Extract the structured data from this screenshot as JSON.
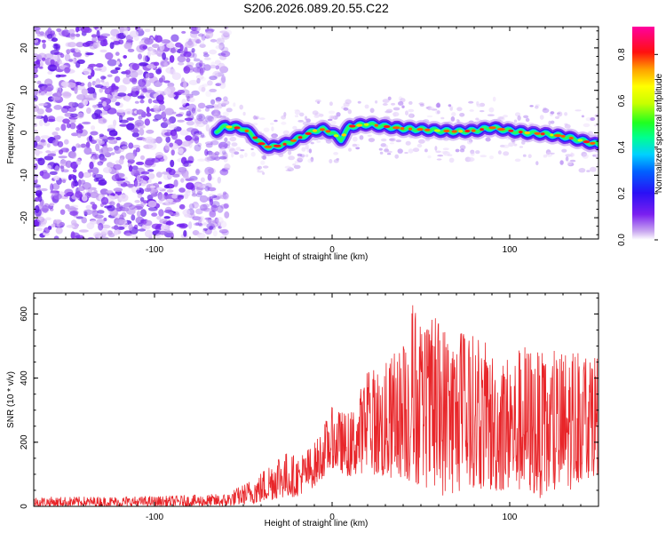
{
  "title": "S206.2026.089.20.55.C22",
  "chart_data": [
    {
      "type": "heatmap",
      "name": "spectrogram",
      "xlabel": "Height of straight line (km)",
      "ylabel": "Frequency (Hz)",
      "xlim": [
        -168,
        150
      ],
      "ylim": [
        -25,
        25
      ],
      "xticks": [
        -100,
        0,
        100
      ],
      "yticks": [
        -20,
        -10,
        0,
        10,
        20
      ],
      "colorbar": {
        "label": "Normalized spectral amplitude",
        "range": [
          0,
          0.92
        ],
        "ticks": [
          0.0,
          0.2,
          0.4,
          0.6,
          0.8
        ],
        "tick_labels": [
          "0.0",
          "0.2",
          "0.4",
          "0.6",
          "0.8"
        ]
      },
      "noise_region_x": [
        -168,
        -65
      ],
      "ridge": {
        "description": "Doppler frequency ridge vs height",
        "x": [
          -65,
          -60,
          -50,
          -45,
          -40,
          -35,
          -30,
          -25,
          -20,
          -15,
          -10,
          -5,
          0,
          5,
          10,
          20,
          30,
          40,
          50,
          60,
          70,
          80,
          90,
          100,
          110,
          120,
          130,
          140,
          150
        ],
        "y": [
          0.5,
          1.5,
          1.0,
          -0.5,
          -2.5,
          -3.5,
          -3.0,
          -2.5,
          -1.5,
          -0.5,
          0.5,
          0.8,
          0.0,
          -1.5,
          1.5,
          2.0,
          1.5,
          1.0,
          0.8,
          0.5,
          0.3,
          0.5,
          1.2,
          0.5,
          0.0,
          -0.3,
          -0.8,
          -1.8,
          -2.8
        ]
      }
    },
    {
      "type": "line",
      "name": "snr",
      "xlabel": "Height of straight line (km)",
      "ylabel": "SNR (10 * v/v)",
      "xlim": [
        -168,
        150
      ],
      "ylim": [
        0,
        665
      ],
      "xticks": [
        -100,
        0,
        100
      ],
      "yticks": [
        0,
        200,
        400,
        600
      ],
      "color": "#e8262a",
      "envelope": {
        "x": [
          -168,
          -100,
          -60,
          -50,
          -40,
          -30,
          -20,
          -10,
          0,
          10,
          20,
          30,
          40,
          45,
          50,
          60,
          70,
          80,
          90,
          100,
          110,
          120,
          130,
          140,
          150
        ],
        "high": [
          30,
          32,
          40,
          70,
          110,
          180,
          160,
          200,
          310,
          290,
          430,
          450,
          520,
          665,
          560,
          600,
          560,
          540,
          500,
          480,
          520,
          470,
          500,
          510,
          500
        ],
        "low": [
          0,
          0,
          0,
          5,
          10,
          25,
          30,
          60,
          120,
          90,
          110,
          80,
          90,
          60,
          70,
          30,
          40,
          60,
          40,
          50,
          40,
          20,
          30,
          80,
          100
        ]
      }
    }
  ]
}
